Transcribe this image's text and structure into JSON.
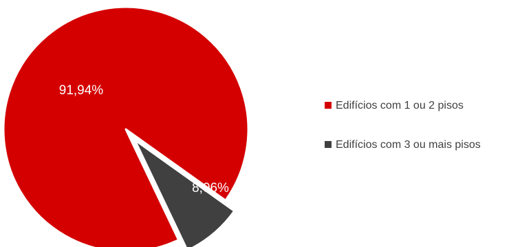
{
  "chart_data": {
    "type": "pie",
    "categories": [
      "Edifícios com 1 ou 2 pisos",
      "Edifícios com 3 ou mais pisos"
    ],
    "values": [
      91.94,
      8.06
    ],
    "data_labels": [
      "91,94%",
      "8,06%"
    ],
    "colors": [
      "#d40000",
      "#404040"
    ],
    "exploded": [
      false,
      true
    ],
    "legend_position": "right",
    "title": ""
  }
}
